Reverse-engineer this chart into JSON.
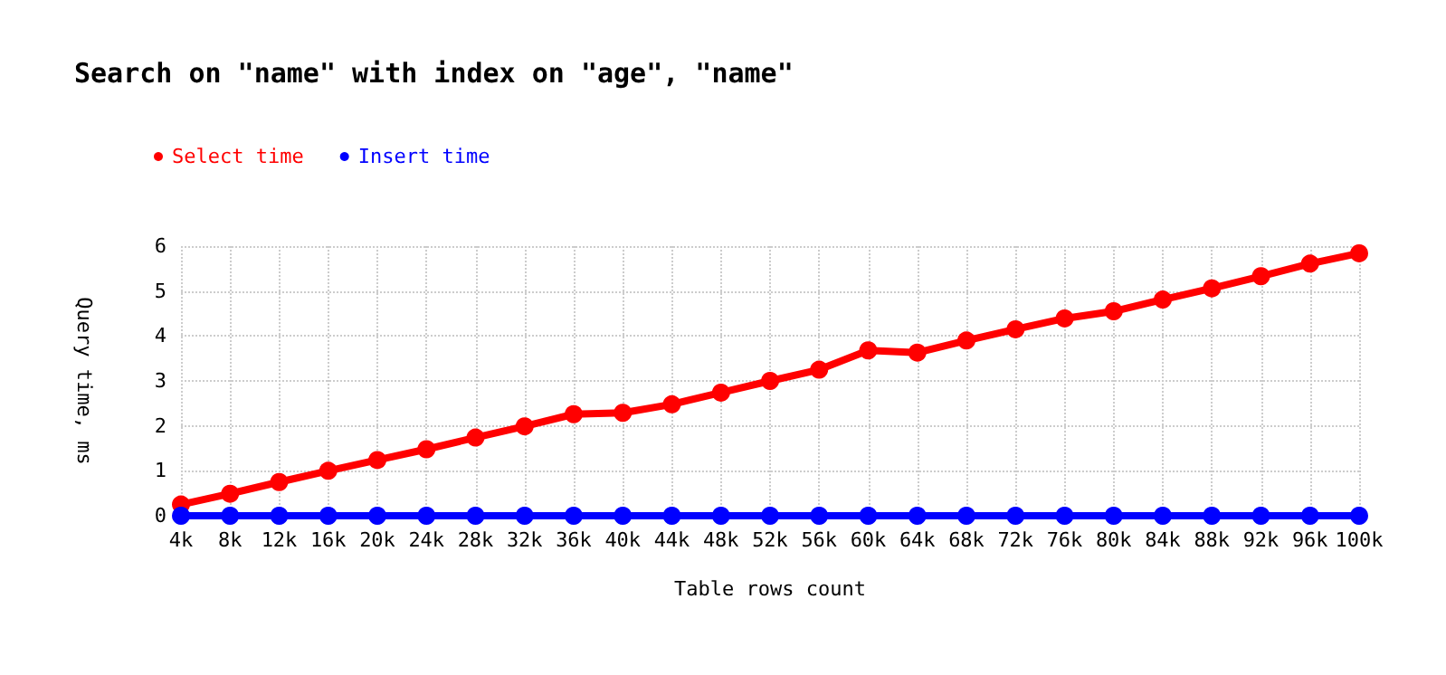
{
  "chart_data": {
    "type": "line",
    "title": "Search on \"name\" with index on \"age\", \"name\"",
    "xlabel": "Table rows count",
    "ylabel": "Query time, ms",
    "categories": [
      "4k",
      "8k",
      "12k",
      "16k",
      "20k",
      "24k",
      "28k",
      "32k",
      "36k",
      "40k",
      "44k",
      "48k",
      "52k",
      "56k",
      "60k",
      "64k",
      "68k",
      "72k",
      "76k",
      "80k",
      "84k",
      "88k",
      "92k",
      "96k",
      "100k"
    ],
    "series": [
      {
        "name": "Select time",
        "color": "#ff0000",
        "values": [
          0.25,
          0.49,
          0.75,
          1.0,
          1.24,
          1.48,
          1.74,
          1.99,
          2.26,
          2.29,
          2.48,
          2.74,
          3.0,
          3.25,
          3.68,
          3.63,
          3.9,
          4.15,
          4.39,
          4.55,
          4.81,
          5.06,
          5.33,
          5.61,
          5.84
        ]
      },
      {
        "name": "Insert time",
        "color": "#0000ff",
        "values": [
          0,
          0,
          0,
          0,
          0,
          0,
          0,
          0,
          0,
          0,
          0,
          0,
          0,
          0,
          0,
          0,
          0,
          0,
          0,
          0,
          0,
          0,
          0,
          0,
          0
        ]
      }
    ],
    "ylim": [
      0,
      6
    ],
    "yticks": [
      0,
      1,
      2,
      3,
      4,
      5,
      6
    ],
    "grid": true,
    "legend": "top left",
    "marker": "circle",
    "line_style": "solid"
  }
}
